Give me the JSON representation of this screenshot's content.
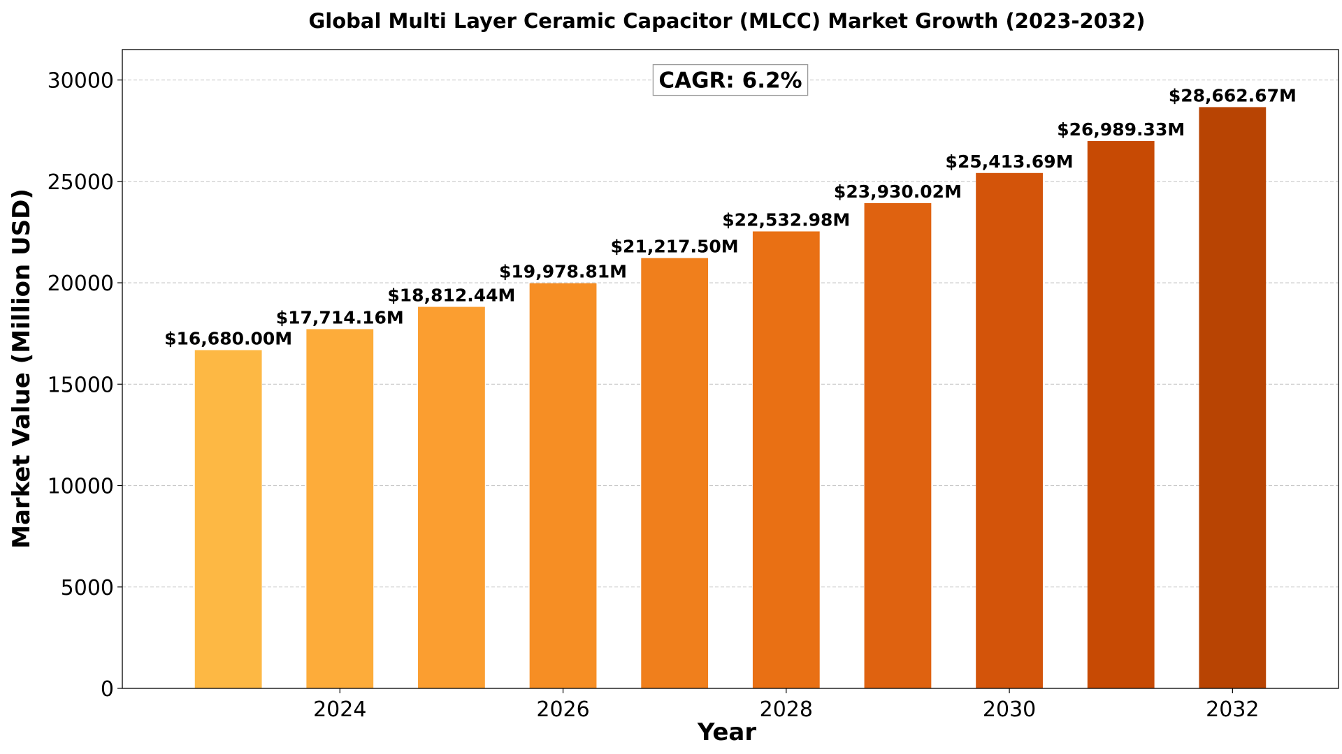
{
  "chart_data": {
    "type": "bar",
    "title": "Global Multi Layer Ceramic Capacitor (MLCC) Market Growth (2023-2032)",
    "xlabel": "Year",
    "ylabel": "Market Value (Million USD)",
    "categories": [
      2023,
      2024,
      2025,
      2026,
      2027,
      2028,
      2029,
      2030,
      2031,
      2032
    ],
    "values": [
      16680.0,
      17714.16,
      18812.44,
      19978.81,
      21217.5,
      22532.98,
      23930.02,
      25413.69,
      26989.33,
      28662.67
    ],
    "data_labels": [
      "$16,680.00M",
      "$17,714.16M",
      "$18,812.44M",
      "$19,978.81M",
      "$21,217.50M",
      "$22,532.98M",
      "$23,930.02M",
      "$25,413.69M",
      "$26,989.33M",
      "$28,662.67M"
    ],
    "x_ticks": [
      2024,
      2026,
      2028,
      2030,
      2032
    ],
    "y_ticks": [
      0,
      5000,
      10000,
      15000,
      20000,
      25000,
      30000
    ],
    "xlim": [
      2022.05,
      2032.95
    ],
    "ylim": [
      0,
      31500
    ],
    "grid": "horizontal dashed",
    "bar_colors": [
      "#fdb844",
      "#fdac3a",
      "#fb9e30",
      "#f68e24",
      "#f07f1c",
      "#e97014",
      "#df6210",
      "#d3540a",
      "#c74a04",
      "#b84403"
    ],
    "annotation": "CAGR: 6.2%"
  }
}
